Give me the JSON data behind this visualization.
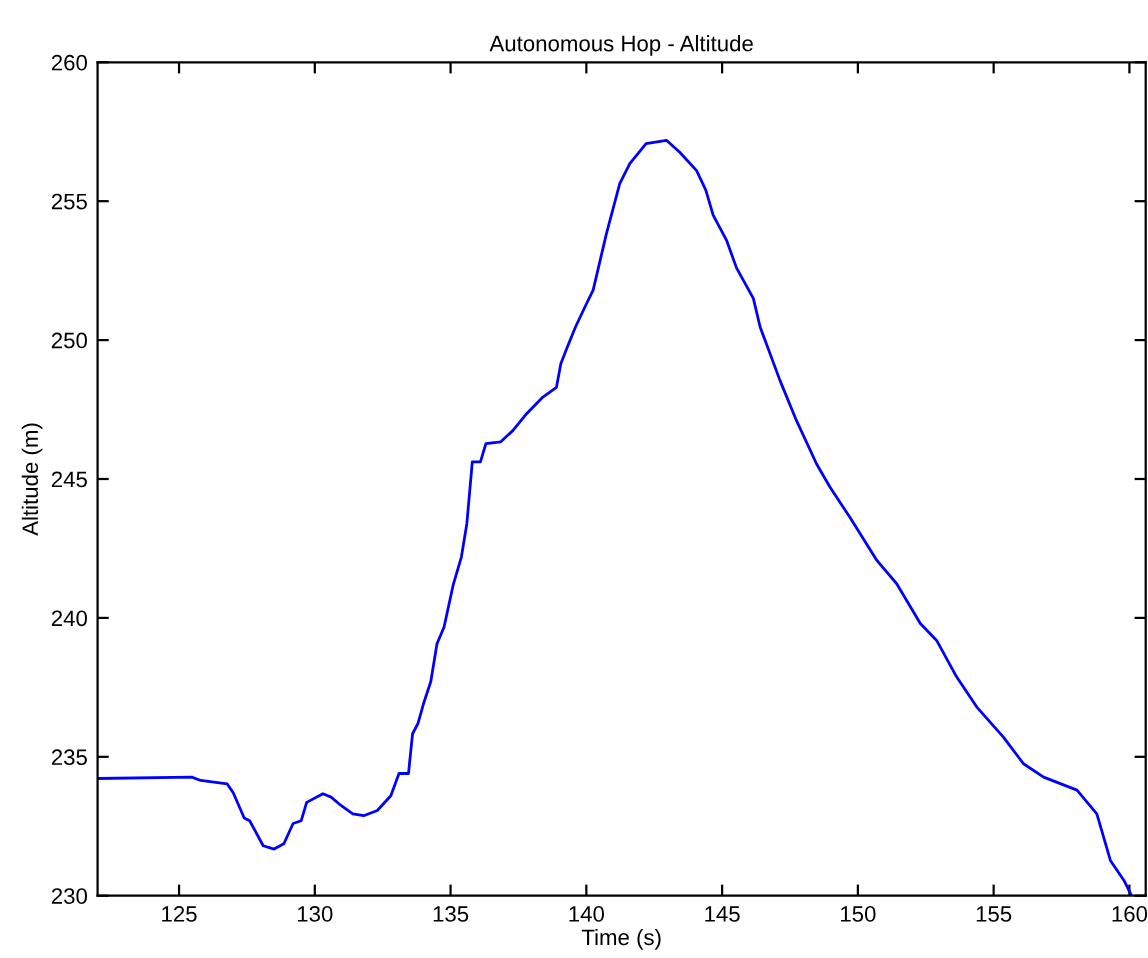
{
  "chart_data": {
    "type": "line",
    "title": "Autonomous Hop - Altitude",
    "xlabel": "Time (s)",
    "ylabel": "Altitude (m)",
    "xlim": [
      122,
      160.6
    ],
    "xticks": [
      125,
      130,
      135,
      140,
      145,
      150,
      155,
      160
    ],
    "ylim": [
      230,
      260
    ],
    "yticks": [
      230,
      235,
      240,
      245,
      250,
      255,
      260
    ],
    "grid": false,
    "legend": false,
    "series": [
      {
        "color": "#0000ff",
        "x": [
          122,
          125.47,
          125.8,
          126.77,
          127.0,
          127.4,
          127.6,
          128.1,
          128.5,
          128.86,
          129.2,
          129.5,
          129.7,
          130.3,
          130.6,
          130.9,
          131.4,
          131.8,
          132.3,
          132.8,
          133.1,
          133.45,
          133.6,
          133.8,
          134.0,
          134.27,
          134.5,
          134.76,
          135.1,
          135.4,
          135.6,
          135.8,
          136.1,
          136.3,
          136.85,
          137.3,
          137.8,
          138.4,
          138.9,
          139.06,
          139.3,
          139.6,
          140.0,
          140.25,
          140.74,
          141.23,
          141.6,
          142.2,
          142.95,
          143.44,
          144.06,
          144.4,
          144.67,
          145.16,
          145.53,
          146.15,
          146.4,
          147.13,
          147.74,
          148.48,
          148.97,
          149.7,
          150.7,
          151.43,
          152.3,
          152.9,
          153.64,
          154.38,
          155.36,
          156.1,
          156.84,
          158.07,
          158.8,
          159.3,
          159.8,
          160.08
        ],
        "values": [
          234.22,
          234.27,
          234.15,
          234.03,
          233.7,
          232.8,
          232.7,
          231.8,
          231.68,
          231.87,
          232.6,
          232.7,
          233.36,
          233.67,
          233.55,
          233.3,
          232.95,
          232.88,
          233.07,
          233.6,
          234.4,
          234.4,
          235.83,
          236.2,
          236.9,
          237.7,
          239.07,
          239.67,
          241.2,
          242.2,
          243.4,
          245.62,
          245.62,
          246.27,
          246.34,
          246.75,
          247.35,
          247.95,
          248.3,
          249.15,
          249.75,
          250.47,
          251.3,
          251.8,
          253.83,
          255.63,
          256.35,
          257.07,
          257.19,
          256.76,
          256.1,
          255.4,
          254.5,
          253.6,
          252.6,
          251.5,
          250.47,
          248.55,
          247.1,
          245.54,
          244.71,
          243.63,
          242.07,
          241.23,
          239.8,
          239.19,
          237.87,
          236.79,
          235.71,
          234.75,
          234.27,
          233.8,
          232.95,
          231.27,
          230.55,
          230.0
        ]
      }
    ]
  }
}
